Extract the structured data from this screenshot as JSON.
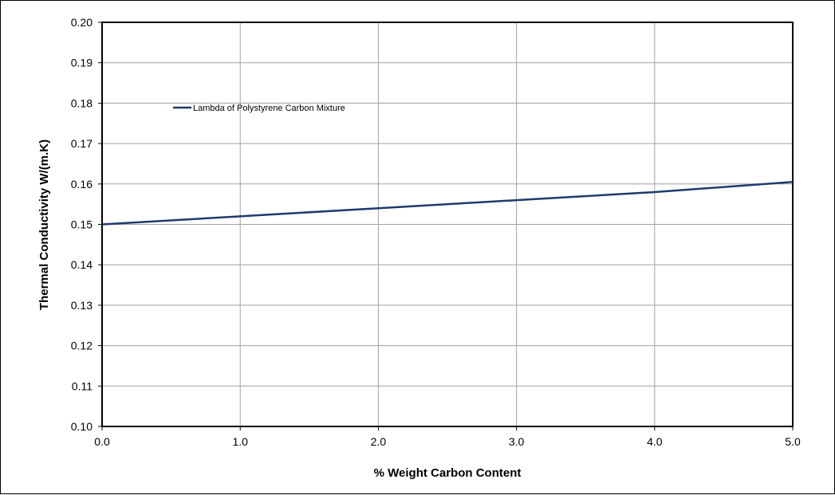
{
  "chart_data": {
    "type": "line",
    "title": "",
    "xlabel": "% Weight Carbon Content",
    "ylabel": "Thermal Conductivity W/(m.K)",
    "xlim": [
      0.0,
      5.0
    ],
    "ylim": [
      0.1,
      0.2
    ],
    "x_ticks": [
      "0.0",
      "1.0",
      "2.0",
      "3.0",
      "4.0",
      "5.0"
    ],
    "y_ticks": [
      "0.10",
      "0.11",
      "0.12",
      "0.13",
      "0.14",
      "0.15",
      "0.16",
      "0.17",
      "0.18",
      "0.19",
      "0.20"
    ],
    "grid": true,
    "legend_position": "top-left",
    "series": [
      {
        "name": "Lambda of Polystyrene Carbon Mixture",
        "color": "#1f3a6e",
        "x": [
          0.0,
          1.0,
          2.0,
          3.0,
          4.0,
          5.0
        ],
        "y": [
          0.15,
          0.152,
          0.154,
          0.156,
          0.158,
          0.1605
        ]
      }
    ]
  }
}
